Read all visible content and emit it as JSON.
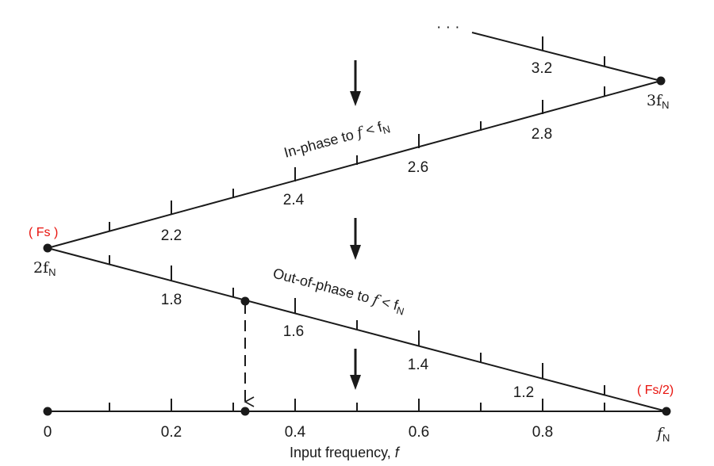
{
  "axis": {
    "title_text": "Input frequency, ",
    "title_var": "f",
    "tick_labels": [
      "0",
      "0.2",
      "0.4",
      "0.6",
      "0.8"
    ],
    "end_label_main": "f",
    "end_label_sub": "N"
  },
  "segment_low": {
    "tick_labels": [
      "1.2",
      "1.4",
      "1.6",
      "1.8"
    ],
    "annotation_text": "Out-of-phase to ",
    "annotation_var": "f",
    "annotation_rel": " < f",
    "annotation_sub": "N"
  },
  "segment_high": {
    "tick_labels": [
      "2.2",
      "2.4",
      "2.6",
      "2.8"
    ],
    "annotation_text": "In-phase to ",
    "annotation_var": "f",
    "annotation_rel": " < f",
    "annotation_sub": "N"
  },
  "segment_top": {
    "tick_labels": [
      "3.2"
    ],
    "ellipsis": "· · ·"
  },
  "nodes": {
    "two_fn_main": "2f",
    "two_fn_sub": "N",
    "three_fn_main": "3f",
    "three_fn_sub": "N"
  },
  "red_labels": {
    "fs": "( Fs )",
    "fs_half": "( Fs/2)"
  },
  "colors": {
    "line": "#1a1a1a",
    "red": "#e8120c"
  }
}
